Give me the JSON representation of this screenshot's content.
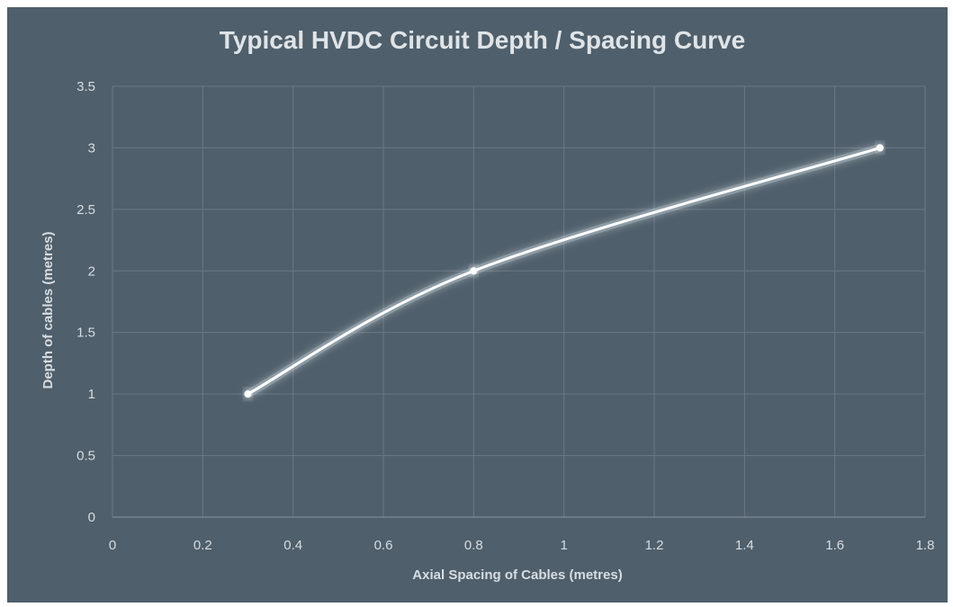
{
  "chart_data": {
    "type": "line",
    "title": "Typical HVDC Circuit Depth / Spacing Curve",
    "xlabel": "Axial Spacing of Cables (metres)",
    "ylabel": "Depth of cables (metres)",
    "xlim": [
      0,
      1.8
    ],
    "ylim": [
      0,
      3.5
    ],
    "x_ticks": [
      "0",
      "0.2",
      "0.4",
      "0.6",
      "0.8",
      "1",
      "1.2",
      "1.4",
      "1.6",
      "1.8"
    ],
    "y_ticks": [
      "0",
      "0.5",
      "1",
      "1.5",
      "2",
      "2.5",
      "3",
      "3.5"
    ],
    "grid": true,
    "smooth": true,
    "series": [
      {
        "x": [
          0.3,
          0.8,
          1.7
        ],
        "y": [
          1,
          2,
          3
        ]
      }
    ],
    "colors": {
      "background": "#4f5f6b",
      "line": "#ffffff",
      "glow": "#cfe6f5",
      "grid": "#6a7884",
      "text": "#d7dde2"
    }
  }
}
